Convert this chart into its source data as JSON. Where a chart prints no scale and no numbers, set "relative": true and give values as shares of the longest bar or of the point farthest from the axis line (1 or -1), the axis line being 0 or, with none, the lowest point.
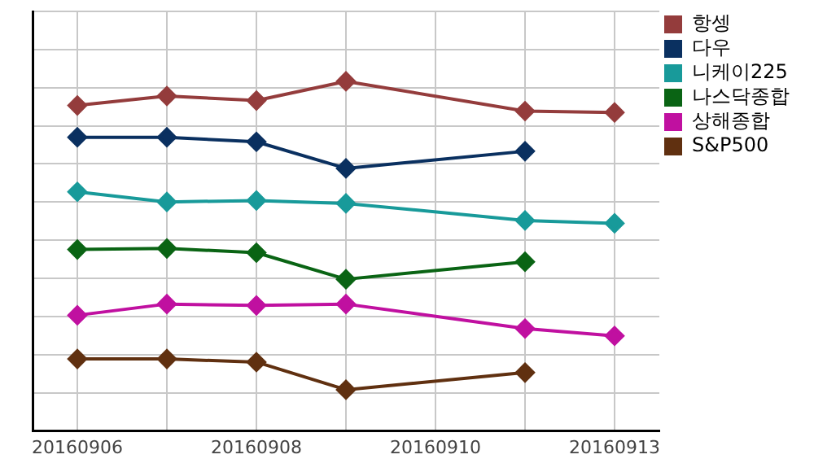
{
  "chart_data": {
    "type": "line",
    "relative": true,
    "categories": [
      "20160906",
      null,
      "20160908",
      null,
      "20160910",
      null,
      "20160913"
    ],
    "series": [
      {
        "name": "항셍",
        "color": "#943c3c",
        "values": [
          0.931,
          0.958,
          0.945,
          1,
          null,
          0.915,
          0.911
        ]
      },
      {
        "name": "다우",
        "color": "#0a3060",
        "values": [
          0.84,
          0.84,
          0.827,
          0.751,
          null,
          0.8,
          null
        ]
      },
      {
        "name": "니케이225",
        "color": "#189a9a",
        "values": [
          0.684,
          0.655,
          0.659,
          0.651,
          null,
          0.602,
          0.594
        ]
      },
      {
        "name": "나스닥종합",
        "color": "#0a6414",
        "values": [
          0.519,
          0.522,
          0.51,
          0.434,
          null,
          0.484,
          null
        ]
      },
      {
        "name": "상해종합",
        "color": "#c010a0",
        "values": [
          0.331,
          0.363,
          0.359,
          0.363,
          null,
          0.293,
          0.272
        ]
      },
      {
        "name": "S&P500",
        "color": "#603010",
        "values": [
          0.206,
          0.206,
          0.197,
          0.118,
          null,
          0.167,
          null
        ]
      }
    ],
    "grid": true,
    "legend": "right",
    "marker": "diamond",
    "line_style": "solid"
  }
}
